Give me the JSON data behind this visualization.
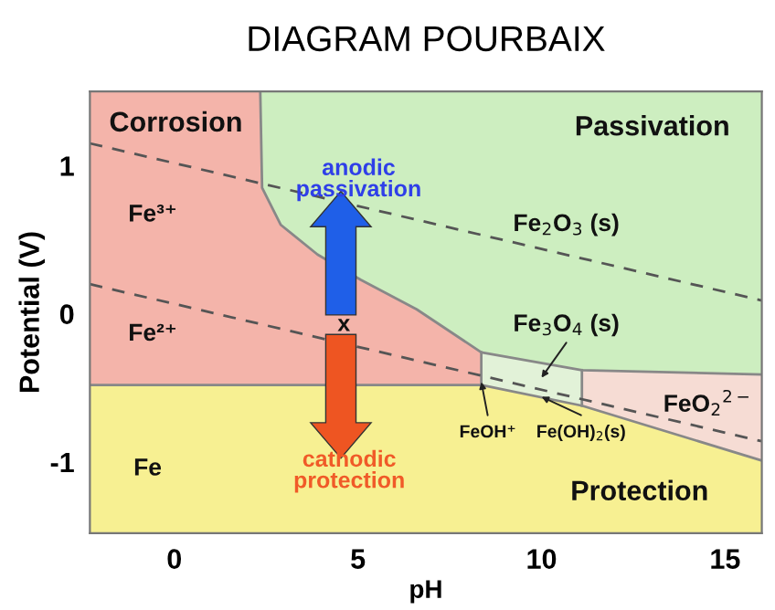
{
  "chart_data": {
    "type": "line",
    "title": "DIAGRAM POURBAIX",
    "xlabel": "pH",
    "ylabel": "Potential (V)",
    "xlim": [
      -2.3,
      16
    ],
    "ylim": [
      -1.48,
      1.5
    ],
    "xticks": [
      0,
      5,
      10,
      15
    ],
    "yticks": [
      -1,
      0,
      1
    ],
    "series": [
      {
        "color": "#888888",
        "x": [
          2.34,
          2.39,
          2.9,
          3.9,
          5.07,
          6.6,
          8.36,
          11.1,
          16
        ],
        "values": [
          1.5,
          0.85,
          0.6,
          0.4,
          0.23,
          0.03,
          -0.26,
          -0.38,
          -0.41
        ]
      },
      {
        "color": "#888888",
        "x": [
          -2.3,
          8.36,
          11.1,
          16
        ],
        "values": [
          -0.48,
          -0.48,
          -0.62,
          -0.99
        ]
      },
      {
        "color": "#888888",
        "x": [
          8.36,
          8.36
        ],
        "values": [
          -0.26,
          -0.48
        ]
      },
      {
        "color": "#888888",
        "x": [
          11.1,
          11.1
        ],
        "values": [
          -0.38,
          -0.62
        ]
      },
      {
        "color": "#555555",
        "line_style": "dashed",
        "x": [
          -2.3,
          16
        ],
        "values": [
          1.15,
          0.09
        ]
      },
      {
        "color": "#555555",
        "line_style": "dashed",
        "x": [
          -2.3,
          16
        ],
        "values": [
          0.2,
          -0.86
        ]
      }
    ],
    "annotations": [
      "Corrosion",
      "Passivation",
      "Fe³⁺",
      "Fe²⁺",
      "Fe",
      "Fe$_{2}$O$_{3}$ (s)",
      "Fe$_{3}$O$_{4}$ (s)",
      "FeO$_{2}$$^{2−}$",
      {
        "text": "FeOH⁺",
        "x": 8.36,
        "y": -0.46
      },
      {
        "text": "Fe(OH)$_{2}$(s)",
        "x": 10.0,
        "y": -0.56
      },
      "Protection",
      "anodic\npassivation",
      "cathodic\nprotection",
      "x"
    ]
  }
}
